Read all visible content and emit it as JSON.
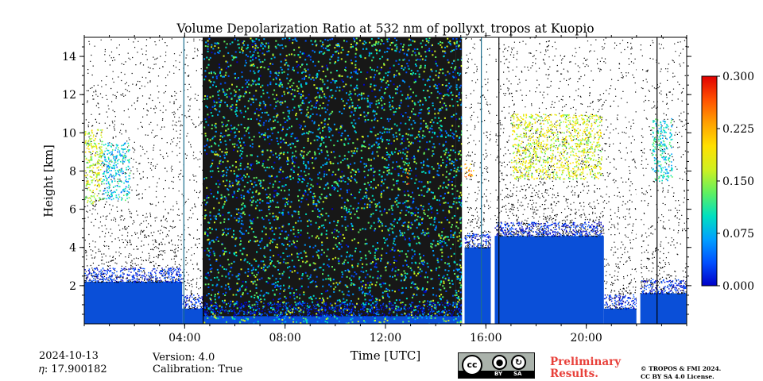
{
  "chart_data": {
    "type": "heatmap",
    "title": "Volume Depolarization Ratio at 532 nm of pollyxt_tropos at Kuopio",
    "xlabel": "Time [UTC]",
    "ylabel": "Height [km]",
    "xlim_hours": [
      0,
      24
    ],
    "ylim_km": [
      0,
      15
    ],
    "x_ticks": [
      {
        "hour": 4,
        "label": "04:00"
      },
      {
        "hour": 8,
        "label": "08:00"
      },
      {
        "hour": 12,
        "label": "12:00"
      },
      {
        "hour": 16,
        "label": "16:00"
      },
      {
        "hour": 20,
        "label": "20:00"
      }
    ],
    "y_ticks": [
      {
        "value": 2,
        "label": "2"
      },
      {
        "value": 4,
        "label": "4"
      },
      {
        "value": 6,
        "label": "6"
      },
      {
        "value": 8,
        "label": "8"
      },
      {
        "value": 10,
        "label": "10"
      },
      {
        "value": 12,
        "label": "12"
      },
      {
        "value": 14,
        "label": "14"
      }
    ],
    "colorbar": {
      "min": 0.0,
      "max": 0.3,
      "ticks": [
        {
          "value": 0.0,
          "label": "0.000"
        },
        {
          "value": 0.075,
          "label": "0.075"
        },
        {
          "value": 0.15,
          "label": "0.150"
        },
        {
          "value": 0.225,
          "label": "0.225"
        },
        {
          "value": 0.3,
          "label": "0.300"
        }
      ],
      "colors": [
        "#0000c8",
        "#0050ff",
        "#00a0ff",
        "#00e0c0",
        "#60f060",
        "#d0f020",
        "#ffe000",
        "#ffa000",
        "#ff5000",
        "#e00000"
      ]
    },
    "segments": [
      {
        "t0": 0.0,
        "t1": 3.9,
        "regime": "clear",
        "boundary_top_km": 2.2
      },
      {
        "t0": 3.9,
        "t1": 4.75,
        "regime": "clear",
        "boundary_top_km": 0.8
      },
      {
        "t0": 4.75,
        "t1": 14.8,
        "regime": "noisy",
        "boundary_top_km": 0.4
      },
      {
        "t0": 14.8,
        "t1": 15.05,
        "regime": "noisy_dark",
        "boundary_top_km": 0.4
      },
      {
        "t0": 15.15,
        "t1": 16.2,
        "regime": "clear",
        "boundary_top_km": 4.0
      },
      {
        "t0": 16.35,
        "t1": 20.7,
        "regime": "clear",
        "boundary_top_km": 4.6
      },
      {
        "t0": 20.7,
        "t1": 22.0,
        "regime": "clear",
        "boundary_top_km": 0.8
      },
      {
        "t0": 22.15,
        "t1": 24.0,
        "regime": "clear",
        "boundary_top_km": 1.6
      }
    ],
    "gaps_hours": [
      [
        15.05,
        15.15
      ],
      [
        16.2,
        16.35
      ],
      [
        22.0,
        22.15
      ]
    ],
    "cloud_features": [
      {
        "t0": 0.0,
        "t1": 0.7,
        "h0_km": 6.3,
        "h1_km": 10.2,
        "depol": 0.16
      },
      {
        "t0": 0.7,
        "t1": 1.8,
        "h0_km": 6.5,
        "h1_km": 9.5,
        "depol": 0.09
      },
      {
        "t0": 12.8,
        "t1": 12.95,
        "h0_km": 7.3,
        "h1_km": 8.1,
        "depol": 0.24
      },
      {
        "t0": 15.1,
        "t1": 15.5,
        "h0_km": 7.7,
        "h1_km": 8.4,
        "depol": 0.22
      },
      {
        "t0": 17.0,
        "t1": 20.6,
        "h0_km": 7.6,
        "h1_km": 11.0,
        "depol": 0.17
      },
      {
        "t0": 22.6,
        "t1": 23.4,
        "h0_km": 7.5,
        "h1_km": 10.8,
        "depol": 0.1
      }
    ]
  },
  "footer": {
    "date": "2024-10-13",
    "eta": "𝜂: 17.900182",
    "version": "Version: 4.0",
    "calibration": "Calibration: True",
    "preliminary_line1": "Preliminary",
    "preliminary_line2": "Results.",
    "copyright_line1": "© TROPOS & FMI 2024.",
    "copyright_line2": "CC BY SA 4.0 License.",
    "license_badge": {
      "cc": "cc",
      "by": "BY",
      "sa": "SA"
    }
  },
  "colors": {
    "preliminary": "#e8403a",
    "aerosol_blue": "#0a4fd8"
  }
}
